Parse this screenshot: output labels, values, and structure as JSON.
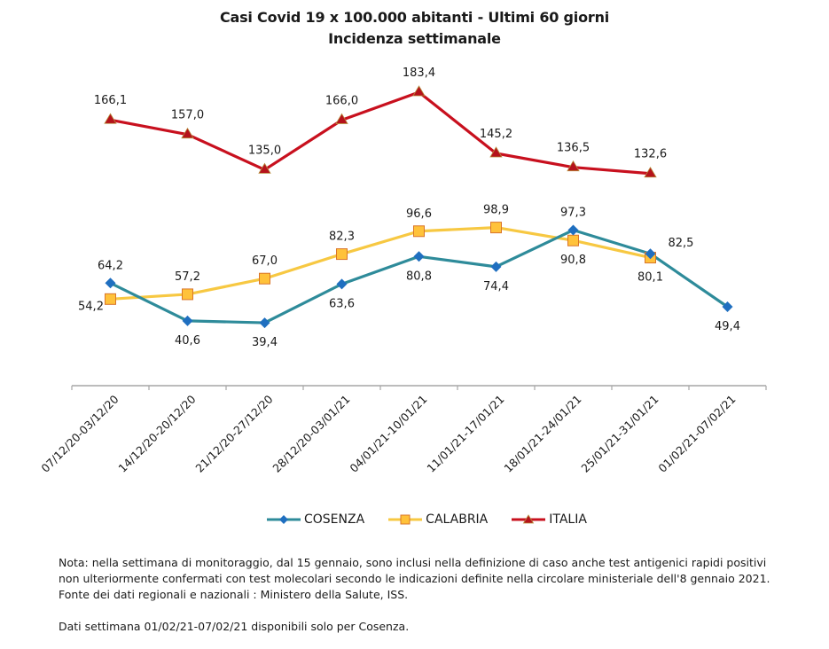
{
  "chart_data": {
    "type": "line",
    "title": "Casi Covid 19 x 100.000 abitanti - Ultimi 60 giorni",
    "subtitle": "Incidenza settimanale",
    "xlabel": "",
    "ylabel": "",
    "ylim": [
      0,
      190
    ],
    "grid": false,
    "y_axis_visible": false,
    "legend_position": "bottom",
    "categories": [
      "07/12/20-03/12/20",
      "14/12/20-20/12/20",
      "21/12/20-27/12/20",
      "28/12/20-03/01/21",
      "04/01/21-10/01/21",
      "11/01/21-17/01/21",
      "18/01/21-24/01/21",
      "25/01/21-31/01/21",
      "01/02/21-07/02/21"
    ],
    "series": [
      {
        "name": "COSENZA",
        "color": "#2E8B9A",
        "marker": "diamond",
        "marker_color": "#1F6FC0",
        "values": [
          64.2,
          40.6,
          39.4,
          63.6,
          80.8,
          74.4,
          97.3,
          82.5,
          49.4
        ],
        "labels": [
          "64,2",
          "40,6",
          "39,4",
          "63,6",
          "80,8",
          "74,4",
          "97,3",
          "82,5",
          "49,4"
        ],
        "label_pos": [
          "above",
          "below",
          "below",
          "below",
          "below",
          "below",
          "above",
          "right-above",
          "below"
        ]
      },
      {
        "name": "CALABRIA",
        "color": "#F7C842",
        "marker": "square",
        "marker_color": "#FFC23A",
        "marker_edge": "#D9752A",
        "values": [
          54.2,
          57.2,
          67.0,
          82.3,
          96.6,
          98.9,
          90.8,
          80.1,
          null
        ],
        "labels": [
          "54,2",
          "57,2",
          "67,0",
          "82,3",
          "96,6",
          "98,9",
          "90,8",
          "80,1",
          null
        ],
        "label_pos": [
          "left-below",
          "above",
          "above",
          "above",
          "above",
          "above",
          "below",
          "below",
          null
        ]
      },
      {
        "name": "ITALIA",
        "color": "#C8101E",
        "marker": "triangle",
        "marker_color": "#B5121B",
        "marker_edge": "#B58A3A",
        "values": [
          166.1,
          157.0,
          135.0,
          166.0,
          183.4,
          145.2,
          136.5,
          132.6,
          null
        ],
        "labels": [
          "166,1",
          "157,0",
          "135,0",
          "166,0",
          "183,4",
          "145,2",
          "136,5",
          "132,6",
          null
        ],
        "label_pos": [
          "above",
          "above",
          "above",
          "above",
          "above",
          "above",
          "above",
          "above",
          null
        ]
      }
    ]
  },
  "notes": {
    "line1": "Nota: nella settimana di monitoraggio, dal 15 gennaio, sono inclusi nella definizione di caso anche test antigenici rapidi positivi",
    "line2": "non ulteriormente confermati con test molecolari secondo le indicazioni definite nella circolare ministeriale  dell'8 gennaio 2021.",
    "line3": "Fonte dei dati regionali e nazionali : Ministero della Salute, ISS.",
    "line4": "Dati settimana 01/02/21-07/02/21 disponibili solo per Cosenza."
  }
}
